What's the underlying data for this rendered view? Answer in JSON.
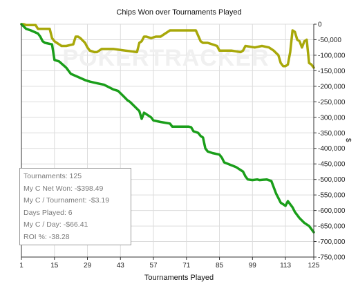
{
  "chart_data": {
    "type": "line",
    "title": "Chips Won over Tournaments Played",
    "xlabel": "Tournaments Played",
    "ylabel": "$",
    "watermark": "POKERTRACKER",
    "xlim": [
      1,
      125
    ],
    "ylim": [
      -750000,
      0
    ],
    "x_ticks": [
      1,
      15,
      29,
      43,
      57,
      71,
      85,
      99,
      113,
      125
    ],
    "y_ticks": [
      0,
      -50000,
      -100000,
      -150000,
      -200000,
      -250000,
      -300000,
      -350000,
      -400000,
      -450000,
      -500000,
      -550000,
      -600000,
      -650000,
      -700000,
      -750000
    ],
    "y_tick_labels": [
      "0",
      "-50,000",
      "-100,000",
      "-150,000",
      "-200,000",
      "-250,000",
      "-300,000",
      "-350,000",
      "-400,000",
      "-450,000",
      "-500,000",
      "-550,000",
      "-600,000",
      "-650,000",
      "-700,000",
      "-750,000"
    ],
    "grid": true,
    "series": [
      {
        "color": "#1a9e1a",
        "x": [
          1,
          3,
          5,
          8,
          9,
          10,
          11,
          14,
          15,
          17,
          20,
          21,
          22,
          25,
          28,
          30,
          33,
          36,
          40,
          42,
          44,
          46,
          47,
          51,
          52,
          53,
          55,
          56,
          57,
          60,
          64,
          65,
          68,
          72,
          73,
          74,
          76,
          77,
          78,
          79,
          80,
          82,
          85,
          86,
          87,
          92,
          95,
          96,
          97,
          99,
          101,
          102,
          105,
          107,
          109,
          110,
          111,
          112,
          113,
          114,
          116,
          117,
          119,
          121,
          123,
          125
        ],
        "y": [
          0,
          -15000,
          -20000,
          -30000,
          -40000,
          -55000,
          -60000,
          -65000,
          -115000,
          -120000,
          -140000,
          -150000,
          -160000,
          -170000,
          -180000,
          -185000,
          -190000,
          -195000,
          -210000,
          -215000,
          -230000,
          -245000,
          -250000,
          -280000,
          -305000,
          -285000,
          -295000,
          -300000,
          -310000,
          -315000,
          -320000,
          -330000,
          -330000,
          -330000,
          -332000,
          -345000,
          -350000,
          -360000,
          -365000,
          -400000,
          -410000,
          -415000,
          -420000,
          -430000,
          -445000,
          -460000,
          -475000,
          -490000,
          -500000,
          -502000,
          -500000,
          -502000,
          -500000,
          -505000,
          -545000,
          -560000,
          -575000,
          -580000,
          -585000,
          -570000,
          -590000,
          -605000,
          -625000,
          -640000,
          -650000,
          -670000
        ]
      },
      {
        "color": "#a8a80a",
        "x": [
          1,
          2,
          3,
          7,
          8,
          9,
          13,
          14,
          15,
          16,
          17,
          18,
          20,
          23,
          24,
          25,
          26,
          28,
          29,
          30,
          32,
          33,
          35,
          37,
          40,
          45,
          50,
          51,
          52,
          53,
          54,
          56,
          58,
          60,
          62,
          64,
          65,
          67,
          70,
          72,
          75,
          77,
          78,
          79,
          80,
          82,
          84,
          85,
          90,
          94,
          95,
          96,
          100,
          103,
          106,
          108,
          110,
          111,
          112,
          113,
          114,
          115,
          116,
          117,
          118,
          119,
          120,
          121,
          122,
          123,
          124,
          125
        ],
        "y": [
          0,
          0,
          -3000,
          -3000,
          -15000,
          -15000,
          -15000,
          -45000,
          -55000,
          -60000,
          -65000,
          -70000,
          -70000,
          -65000,
          -40000,
          -40000,
          -45000,
          -60000,
          -75000,
          -85000,
          -90000,
          -90000,
          -80000,
          -80000,
          -80000,
          -85000,
          -90000,
          -60000,
          -55000,
          -40000,
          -40000,
          -45000,
          -40000,
          -40000,
          -30000,
          -20000,
          -20000,
          -20000,
          -20000,
          -20000,
          -20000,
          -55000,
          -60000,
          -60000,
          -60000,
          -65000,
          -70000,
          -85000,
          -85000,
          -90000,
          -85000,
          -70000,
          -75000,
          -70000,
          -75000,
          -85000,
          -100000,
          -125000,
          -135000,
          -135000,
          -130000,
          -90000,
          -20000,
          -25000,
          -50000,
          -55000,
          -75000,
          -55000,
          -50000,
          -125000,
          -130000,
          -140000
        ]
      }
    ]
  },
  "stats": {
    "tournaments": "Tournaments: 125",
    "net_won": "My C Net Won: -$398.49",
    "per_tournament": "My C / Tournament: -$3.19",
    "days_played": "Days Played: 6",
    "per_day": "My C / Day: -$66.41",
    "roi": "ROI %: -38.28"
  }
}
